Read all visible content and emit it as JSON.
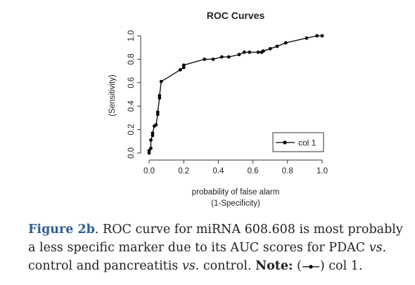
{
  "chart_data": {
    "type": "line",
    "title": "ROC Curves",
    "xlabel_line1": "probability of false alarm",
    "xlabel_line2": "(1-Specificity)",
    "ylabel": "(Sensitivity)",
    "xlim": [
      0,
      1
    ],
    "ylim": [
      0,
      1
    ],
    "x_ticks": [
      "0.0",
      "0.2",
      "0.4",
      "0.6",
      "0.8",
      "1.0"
    ],
    "y_ticks": [
      "0.0",
      "0.2",
      "0.4",
      "0.6",
      "0.8",
      "1.0"
    ],
    "grid": false,
    "legend_position": "bottom-right",
    "series": [
      {
        "name": "col 1",
        "color": "#000000",
        "x": [
          0,
          0,
          0.01,
          0.01,
          0.02,
          0.02,
          0.03,
          0.04,
          0.05,
          0.05,
          0.06,
          0.06,
          0.07,
          0.18,
          0.2,
          0.2,
          0.32,
          0.37,
          0.42,
          0.46,
          0.52,
          0.55,
          0.58,
          0.63,
          0.65,
          0.66,
          0.7,
          0.74,
          0.79,
          0.91,
          0.97,
          1.0
        ],
        "y": [
          0,
          0.02,
          0.04,
          0.11,
          0.15,
          0.17,
          0.23,
          0.24,
          0.33,
          0.35,
          0.47,
          0.49,
          0.61,
          0.71,
          0.73,
          0.75,
          0.8,
          0.8,
          0.82,
          0.82,
          0.84,
          0.86,
          0.86,
          0.86,
          0.86,
          0.87,
          0.89,
          0.91,
          0.94,
          0.98,
          1.0,
          1.0
        ]
      }
    ]
  },
  "caption": {
    "figure_label": "Figure 2b",
    "line1_rest": ". ROC curve for miRNA 608.608 is most probably",
    "line2": "a less specific marker due to its AUC scores for PDAC ",
    "line2_vs": "vs.",
    "line3_start": "control and pancreatitis ",
    "line3_vs": "vs.",
    "line3_mid": " control.  ",
    "note_label": "Note:",
    "note_open": " (",
    "note_close": ") col 1."
  }
}
